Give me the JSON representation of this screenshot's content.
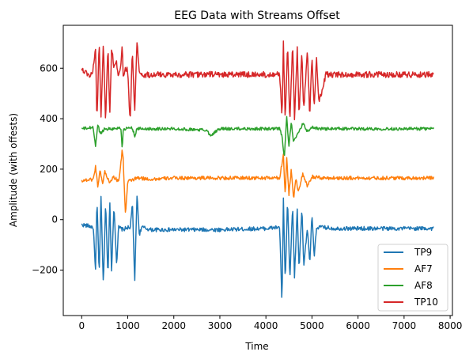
{
  "chart_data": {
    "type": "line",
    "title": "EEG Data with Streams Offset",
    "xlabel": "Time",
    "ylabel": "Amplitude (with offests)",
    "xlim": [
      -400,
      8050
    ],
    "ylim": [
      -380,
      770
    ],
    "xticks": [
      0,
      1000,
      2000,
      3000,
      4000,
      5000,
      6000,
      7000,
      8000
    ],
    "xtick_labels": [
      "0",
      "1000",
      "2000",
      "3000",
      "4000",
      "5000",
      "6000",
      "7000",
      "8000"
    ],
    "yticks": [
      -200,
      0,
      200,
      400,
      600
    ],
    "ytick_labels": [
      "−200",
      "0",
      "200",
      "400",
      "600"
    ],
    "grid": false,
    "legend_position": "lower-right",
    "series": [
      {
        "name": "TP9",
        "color": "#1f77b4",
        "baseline": -30,
        "noise": 8,
        "x": [
          0,
          150,
          250,
          300,
          330,
          380,
          420,
          470,
          520,
          570,
          610,
          650,
          700,
          760,
          800,
          900,
          1000,
          1050,
          1100,
          1150,
          1200,
          1250,
          1300,
          1500,
          2000,
          3000,
          4000,
          4300,
          4350,
          4380,
          4420,
          4470,
          4520,
          4580,
          4620,
          4680,
          4720,
          4780,
          4820,
          4900,
          4950,
          5000,
          5050,
          5100,
          5200,
          5500,
          6000,
          7000,
          7650
        ],
        "y": [
          -20,
          -25,
          -30,
          -200,
          80,
          -220,
          90,
          -260,
          70,
          -230,
          80,
          -210,
          60,
          -180,
          -30,
          -40,
          -30,
          -40,
          70,
          -250,
          100,
          -60,
          -30,
          -40,
          -40,
          -40,
          -35,
          -30,
          -340,
          80,
          -250,
          80,
          -240,
          60,
          -230,
          40,
          -200,
          50,
          -180,
          -30,
          -180,
          20,
          -150,
          -30,
          -30,
          -35,
          -35,
          -35,
          -35
        ]
      },
      {
        "name": "AF7",
        "color": "#ff7f0e",
        "baseline": 160,
        "noise": 7,
        "x": [
          0,
          250,
          300,
          350,
          400,
          450,
          500,
          600,
          700,
          800,
          850,
          880,
          900,
          950,
          1000,
          1200,
          1500,
          2000,
          3000,
          4000,
          4300,
          4380,
          4420,
          4450,
          4500,
          4550,
          4600,
          4650,
          4700,
          4800,
          4900,
          5000,
          5200,
          6000,
          7000,
          7650
        ],
        "y": [
          155,
          160,
          210,
          130,
          200,
          140,
          190,
          150,
          170,
          150,
          220,
          280,
          240,
          20,
          150,
          165,
          160,
          165,
          165,
          165,
          165,
          260,
          90,
          250,
          100,
          200,
          80,
          170,
          110,
          180,
          130,
          170,
          165,
          165,
          165,
          165
        ]
      },
      {
        "name": "AF8",
        "color": "#2ca02c",
        "baseline": 360,
        "noise": 6,
        "x": [
          0,
          250,
          300,
          350,
          400,
          500,
          700,
          850,
          880,
          900,
          950,
          1100,
          1150,
          1200,
          1500,
          2000,
          2700,
          2800,
          3000,
          4000,
          4300,
          4350,
          4400,
          4450,
          4500,
          4550,
          4600,
          4700,
          4800,
          4900,
          5000,
          5200,
          6000,
          7000,
          7650
        ],
        "y": [
          360,
          365,
          290,
          380,
          340,
          360,
          360,
          365,
          280,
          350,
          360,
          365,
          330,
          360,
          360,
          360,
          355,
          335,
          360,
          360,
          360,
          330,
          240,
          410,
          290,
          390,
          310,
          340,
          380,
          350,
          365,
          360,
          360,
          360,
          360
        ]
      },
      {
        "name": "TP10",
        "color": "#d62728",
        "baseline": 575,
        "noise": 12,
        "x": [
          0,
          100,
          200,
          250,
          300,
          330,
          380,
          420,
          470,
          520,
          570,
          610,
          650,
          700,
          760,
          800,
          850,
          880,
          900,
          950,
          1000,
          1050,
          1100,
          1150,
          1200,
          1250,
          1300,
          1500,
          2000,
          3000,
          4000,
          4300,
          4350,
          4380,
          4420,
          4470,
          4520,
          4580,
          4620,
          4680,
          4720,
          4780,
          4820,
          4900,
          4950,
          5000,
          5050,
          5100,
          5150,
          5300,
          6000,
          7000,
          7650
        ],
        "y": [
          600,
          580,
          570,
          600,
          680,
          380,
          720,
          400,
          700,
          390,
          690,
          410,
          680,
          600,
          620,
          570,
          600,
          700,
          560,
          600,
          590,
          380,
          680,
          420,
          700,
          590,
          570,
          575,
          575,
          575,
          575,
          580,
          390,
          700,
          380,
          690,
          390,
          700,
          400,
          680,
          410,
          660,
          430,
          670,
          410,
          650,
          440,
          640,
          460,
          575,
          575,
          575,
          575
        ]
      }
    ]
  }
}
